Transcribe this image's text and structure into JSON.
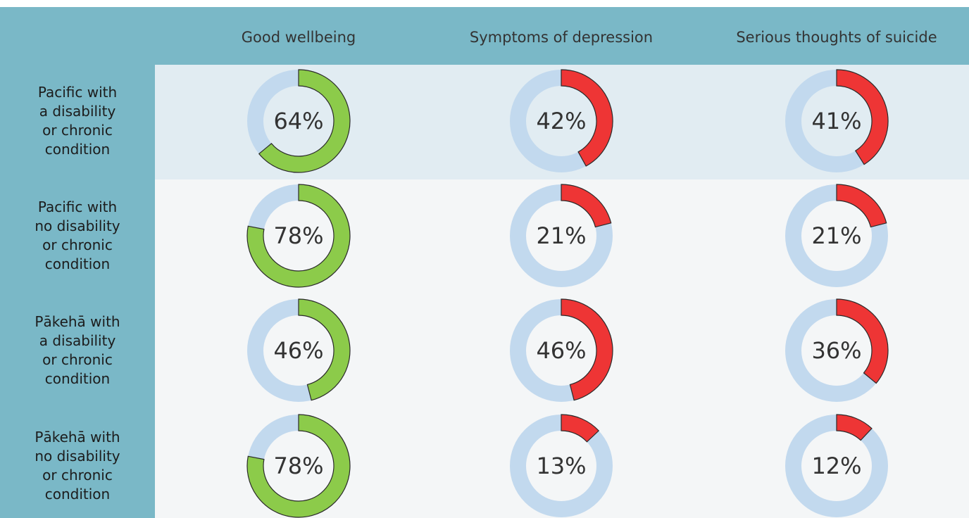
{
  "chart_data": {
    "type": "donut",
    "categories": [
      "Pacific with\na disability\nor chronic\ncondition",
      "Pacific with\nno disability\nor chronic\ncondition",
      "Pākehā with\na disability\nor chronic\ncondition",
      "Pākehā with\nno disability\nor chronic\ncondition"
    ],
    "track_color": "#c2d9ee",
    "series": [
      {
        "name": "Good wellbeing",
        "color": "#8ccb4a",
        "values": [
          64,
          78,
          46,
          78
        ],
        "value_labels": [
          "64%",
          "78%",
          "46%",
          "78%"
        ]
      },
      {
        "name": "Symptoms of depression",
        "color": "#ee3535",
        "values": [
          42,
          21,
          46,
          13
        ],
        "value_labels": [
          "42%",
          "21%",
          "46%",
          "13%"
        ]
      },
      {
        "name": "Serious thoughts of suicide",
        "color": "#ee3535",
        "values": [
          41,
          21,
          36,
          12
        ],
        "value_labels": [
          "41%",
          "21%",
          "36%",
          "12%"
        ]
      }
    ],
    "ylim": [
      0,
      100
    ]
  }
}
